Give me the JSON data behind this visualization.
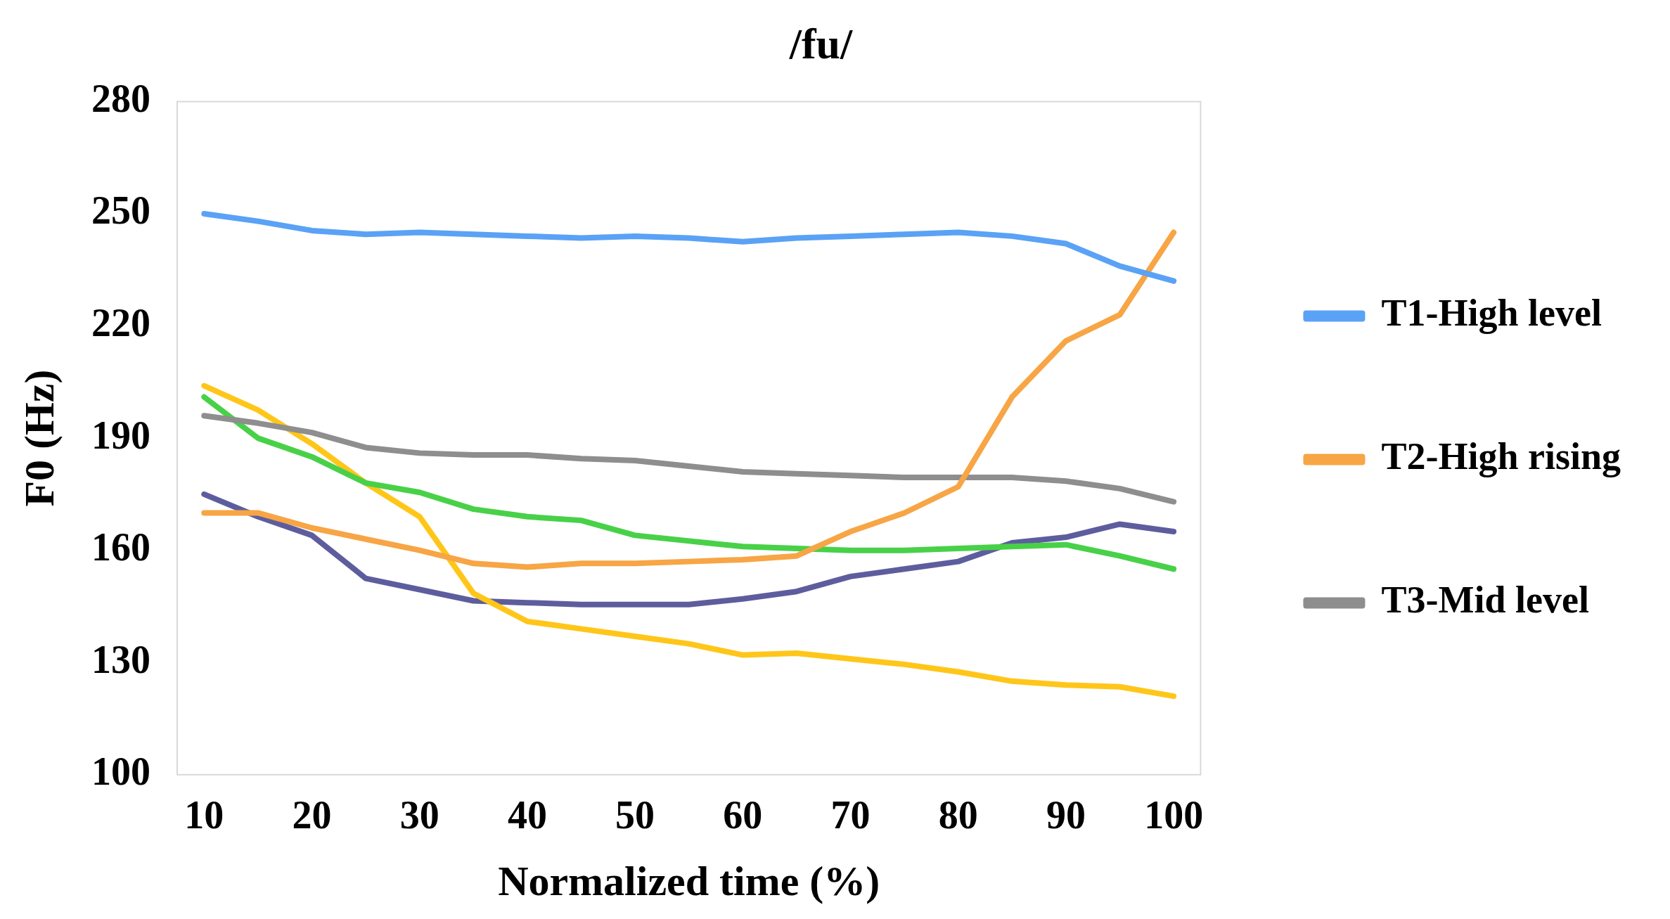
{
  "chart_data": {
    "type": "line",
    "title": "/fu/",
    "xlabel": "Normalized time (%)",
    "ylabel": "F0 (Hz)",
    "categories": [
      "10",
      null,
      "20",
      null,
      "30",
      null,
      "40",
      null,
      "50",
      null,
      "60",
      null,
      "70",
      null,
      "80",
      null,
      "90",
      null,
      "100"
    ],
    "ylim": [
      100,
      280
    ],
    "yticks": [
      100,
      130,
      160,
      190,
      220,
      250,
      280
    ],
    "grid": false,
    "legend": "right",
    "series": [
      {
        "name": "T1-High level",
        "color": "#5aa2f5",
        "values": [
          250,
          248,
          245.5,
          244.5,
          245,
          244.5,
          244,
          243.5,
          244,
          243.5,
          242.5,
          243.5,
          244,
          244.5,
          245,
          244,
          242,
          236,
          232
        ]
      },
      {
        "name": "T2-High rising",
        "color": "#f7a545",
        "values": [
          170,
          170,
          166,
          163,
          160,
          156.5,
          155.5,
          156.5,
          156.5,
          157,
          157.5,
          158.5,
          165,
          170,
          177,
          201,
          216,
          223,
          245
        ]
      },
      {
        "name": "T3-Mid level",
        "color": "#8e8e8e",
        "values": [
          196,
          194,
          191.5,
          187.5,
          186,
          185.5,
          185.5,
          184.5,
          184,
          182.5,
          181,
          180.5,
          180,
          179.5,
          179.5,
          179.5,
          178.5,
          176.5,
          173
        ]
      },
      {
        "color": "#48d148",
        "values": [
          201,
          190,
          185,
          178,
          175.5,
          171,
          169,
          168,
          164,
          162.5,
          161,
          160.5,
          160,
          160,
          160.5,
          161,
          161.5,
          158.5,
          155
        ]
      },
      {
        "color": "#ffc61a",
        "values": [
          204,
          197.5,
          188.5,
          178,
          169,
          148.5,
          141,
          139,
          137,
          135,
          132,
          132.5,
          131,
          129.5,
          127.5,
          125,
          124,
          123.5,
          121
        ]
      },
      {
        "color": "#5d5d9e",
        "values": [
          175,
          169,
          164,
          152.5,
          149.5,
          146.5,
          146,
          145.5,
          145.5,
          145.5,
          147,
          149,
          153,
          155,
          157,
          162,
          163.5,
          167,
          165
        ]
      }
    ]
  }
}
